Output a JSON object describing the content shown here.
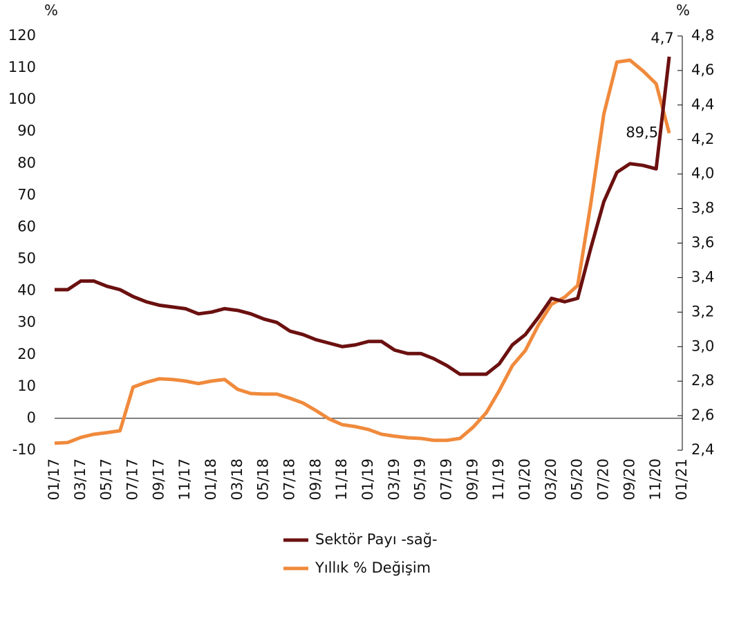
{
  "chart_data": {
    "type": "line",
    "y_label": "%",
    "y2_label": "%",
    "categories": [
      "01/17",
      null,
      "03/17",
      null,
      "05/17",
      null,
      "07/17",
      null,
      "09/17",
      null,
      "11/17",
      null,
      "01/18",
      null,
      "03/18",
      null,
      "05/18",
      null,
      "07/18",
      null,
      "09/18",
      null,
      "11/18",
      null,
      "01/19",
      null,
      "03/19",
      null,
      "05/19",
      null,
      "07/19",
      null,
      "09/19",
      null,
      "11/19",
      null,
      "01/20",
      null,
      "03/20",
      null,
      "05/20",
      null,
      "07/20",
      null,
      "09/20",
      null,
      "11/20",
      null,
      "01/21"
    ],
    "series": [
      {
        "name": "Sektör Payı -sağ-",
        "color": "#6b1010",
        "axis": "y2",
        "values": [
          3.33,
          3.33,
          3.38,
          3.38,
          3.35,
          3.33,
          3.29,
          3.26,
          3.24,
          3.23,
          3.22,
          3.19,
          3.2,
          3.22,
          3.21,
          3.19,
          3.16,
          3.14,
          3.09,
          3.07,
          3.04,
          3.02,
          3.0,
          3.01,
          3.03,
          3.03,
          2.98,
          2.96,
          2.96,
          2.93,
          2.89,
          2.84,
          2.84,
          2.84,
          2.9,
          3.01,
          3.07,
          3.17,
          3.28,
          3.26,
          3.28,
          3.57,
          3.84,
          4.01,
          4.06,
          4.05,
          4.03,
          4.68,
          null
        ],
        "value_labels": [
          null,
          null,
          null,
          null,
          null,
          null,
          null,
          null,
          null,
          null,
          null,
          null,
          null,
          null,
          null,
          null,
          null,
          null,
          null,
          null,
          null,
          null,
          null,
          null,
          null,
          null,
          null,
          null,
          null,
          null,
          null,
          null,
          null,
          null,
          null,
          null,
          null,
          null,
          null,
          null,
          null,
          null,
          null,
          null,
          null,
          null,
          null,
          "4,7",
          null
        ]
      },
      {
        "name": "Yıllık % Değişim",
        "color": "#f08a3c",
        "values": [
          -7.8,
          -7.6,
          -6,
          -5,
          -4.5,
          -3.9,
          9.8,
          11.3,
          12.4,
          12.2,
          11.7,
          10.9,
          11.7,
          12.2,
          9.1,
          7.8,
          7.6,
          7.6,
          6.3,
          4.8,
          2.4,
          -0.2,
          -2,
          -2.6,
          -3.5,
          -5,
          -5.6,
          -6.1,
          -6.3,
          -6.9,
          -6.9,
          -6.3,
          -2.8,
          1.7,
          8.7,
          16.5,
          21.3,
          29.3,
          35.8,
          38,
          41.7,
          67.3,
          95.5,
          111.8,
          112.4,
          109,
          105,
          89.5,
          null
        ],
        "value_labels": [
          null,
          null,
          null,
          null,
          null,
          null,
          null,
          null,
          null,
          null,
          null,
          null,
          null,
          null,
          null,
          null,
          null,
          null,
          null,
          null,
          null,
          null,
          null,
          null,
          null,
          null,
          null,
          null,
          null,
          null,
          null,
          null,
          null,
          null,
          null,
          null,
          null,
          null,
          null,
          null,
          null,
          null,
          null,
          null,
          null,
          null,
          null,
          "89,5",
          null
        ]
      }
    ],
    "ylim": [
      -10,
      120
    ],
    "yticks": [
      -10,
      0,
      10,
      20,
      30,
      40,
      50,
      60,
      70,
      80,
      90,
      100,
      110,
      120
    ],
    "y2lim": [
      2.4,
      4.8
    ],
    "y2ticks": [
      {
        "value": 2.4,
        "label": "2,4"
      },
      {
        "value": 2.6,
        "label": "2,6"
      },
      {
        "value": 2.8,
        "label": "2,8"
      },
      {
        "value": 3.0,
        "label": "3,0"
      },
      {
        "value": 3.2,
        "label": "3,2"
      },
      {
        "value": 3.4,
        "label": "3,4"
      },
      {
        "value": 3.6,
        "label": "3,6"
      },
      {
        "value": 3.8,
        "label": "3,8"
      },
      {
        "value": 4.0,
        "label": "4,0"
      },
      {
        "value": 4.2,
        "label": "4,2"
      },
      {
        "value": 4.4,
        "label": "4,4"
      },
      {
        "value": 4.6,
        "label": "4,6"
      },
      {
        "value": 4.8,
        "label": "4,8"
      }
    ],
    "legend": "bottom"
  }
}
